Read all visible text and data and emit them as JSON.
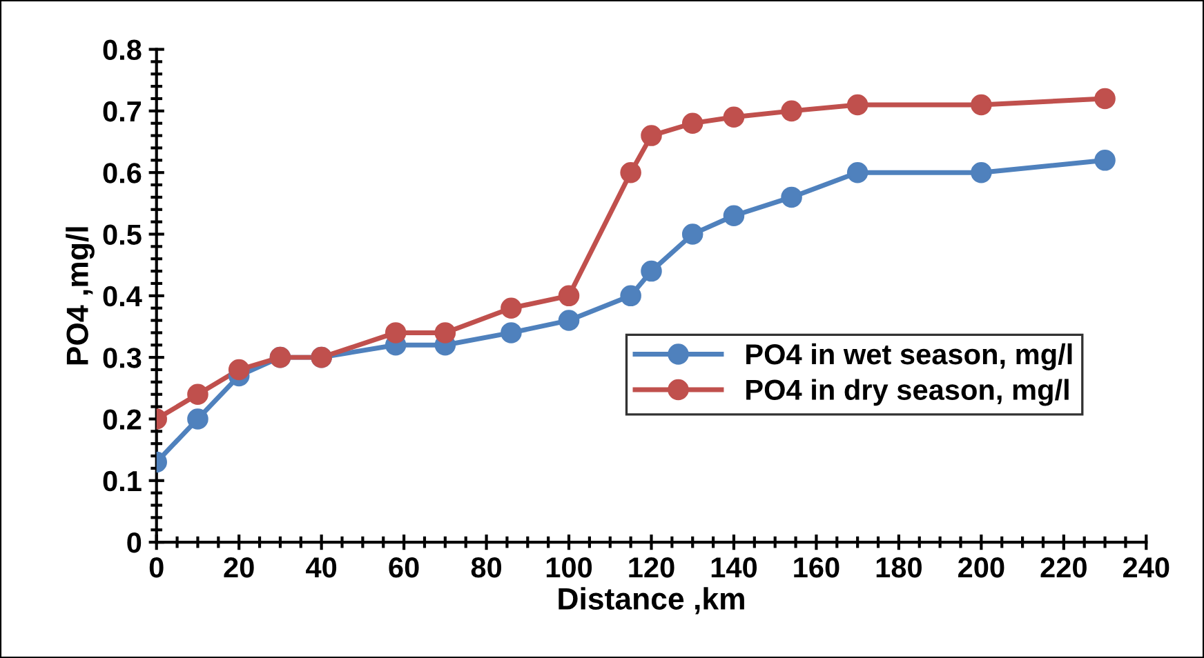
{
  "chart_data": {
    "type": "line",
    "xlabel": "Distance ,km",
    "ylabel": "PO4 ,mg/l",
    "x": [
      0,
      10,
      20,
      30,
      40,
      58,
      70,
      86,
      100,
      115,
      120,
      130,
      140,
      154,
      170,
      200,
      230
    ],
    "series": [
      {
        "name": "PO4 in wet season, mg/l",
        "color": "#4f81bd",
        "values": [
          0.13,
          0.2,
          0.27,
          0.3,
          0.3,
          0.32,
          0.32,
          0.34,
          0.36,
          0.4,
          0.44,
          0.5,
          0.53,
          0.56,
          0.6,
          0.6,
          0.62
        ]
      },
      {
        "name": "PO4 in dry season, mg/l",
        "color": "#c0504d",
        "values": [
          0.2,
          0.24,
          0.28,
          0.3,
          0.3,
          0.34,
          0.34,
          0.38,
          0.4,
          0.6,
          0.66,
          0.68,
          0.69,
          0.7,
          0.71,
          0.71,
          0.72
        ]
      }
    ],
    "xlim": [
      0,
      240
    ],
    "xticks": [
      0,
      20,
      40,
      60,
      80,
      100,
      120,
      140,
      160,
      180,
      200,
      220,
      240
    ],
    "ylim": [
      0,
      0.8
    ],
    "yticks": [
      {
        "value": 0,
        "label": "0"
      },
      0.1,
      0.2,
      0.3,
      0.4,
      0.5,
      0.6,
      0.7,
      0.8
    ],
    "grid": false,
    "legend": "bottom right",
    "marker": "circle",
    "line_style": "solid"
  }
}
